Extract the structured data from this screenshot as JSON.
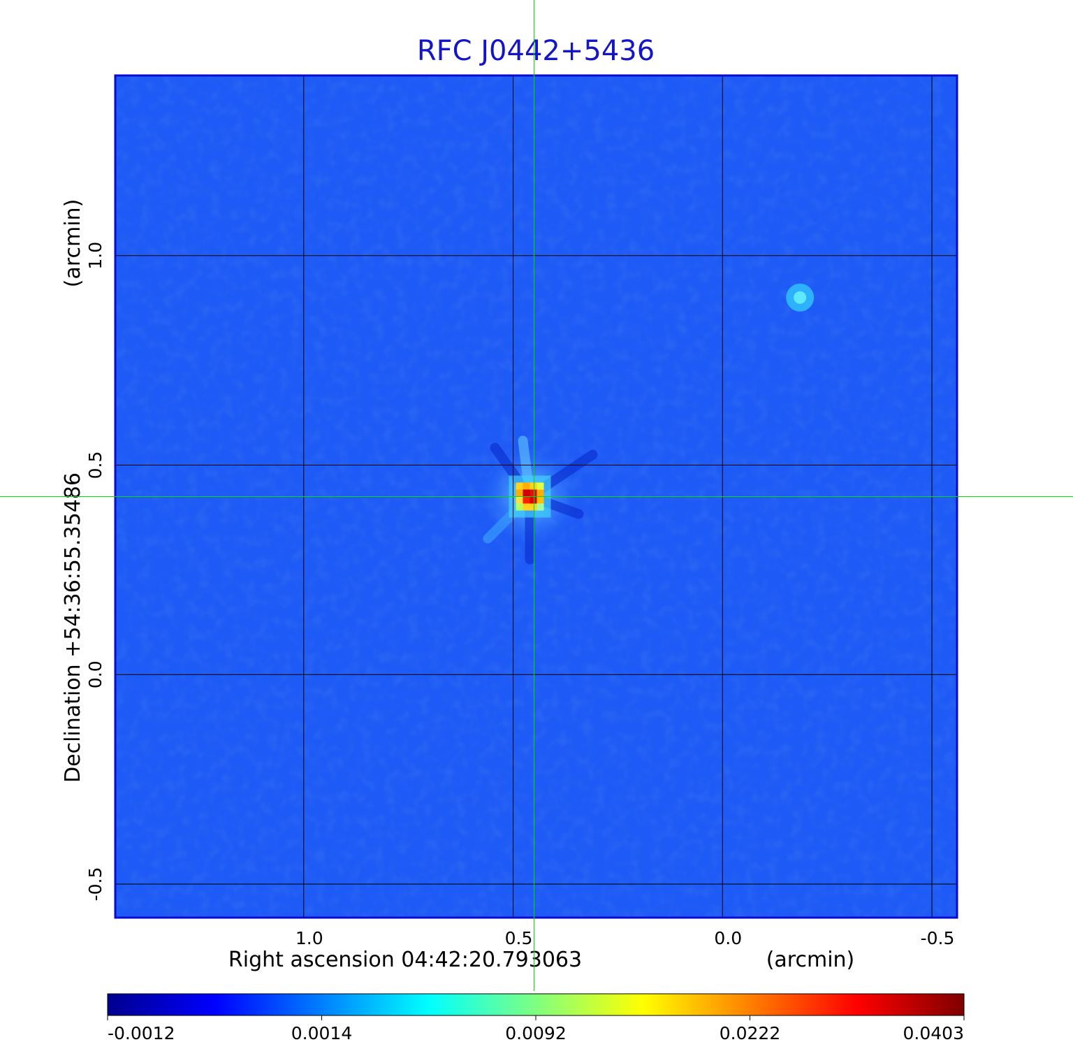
{
  "chart_data": {
    "type": "heatmap",
    "title": "RFC J0442+5436",
    "xlabel": "Right ascension  04:42:20.793063",
    "xunit": "(arcmin)",
    "ylabel": "Declination  +54:36:55.35486",
    "yunit": "(arcmin)",
    "x_ticks": [
      "1.0",
      "0.5",
      "0.0",
      "-0.5"
    ],
    "y_ticks": [
      "1.0",
      "0.5",
      "0.0",
      "-0.5"
    ],
    "xlim": [
      1.45,
      -0.56
    ],
    "ylim": [
      -0.58,
      1.43
    ],
    "grid": true,
    "crosshair": {
      "x": 0.45,
      "y": 0.425
    },
    "peaks": [
      {
        "x": 0.46,
        "y": 0.425,
        "value": 0.0403
      },
      {
        "x": -0.185,
        "y": 0.9,
        "value": 0.0045
      }
    ],
    "colorbar": {
      "position": "bottom",
      "colormap": "jet",
      "tick_labels": [
        "-0.0012",
        "0.0014",
        "0.0092",
        "0.0222",
        "0.0403"
      ],
      "range": [
        -0.0012,
        0.0403
      ]
    },
    "colors": {
      "title": "#1414c8",
      "frame": "#0a0ad2",
      "crosshair": "#00e000",
      "grid": "#000000",
      "background": "#1e5af5"
    }
  }
}
